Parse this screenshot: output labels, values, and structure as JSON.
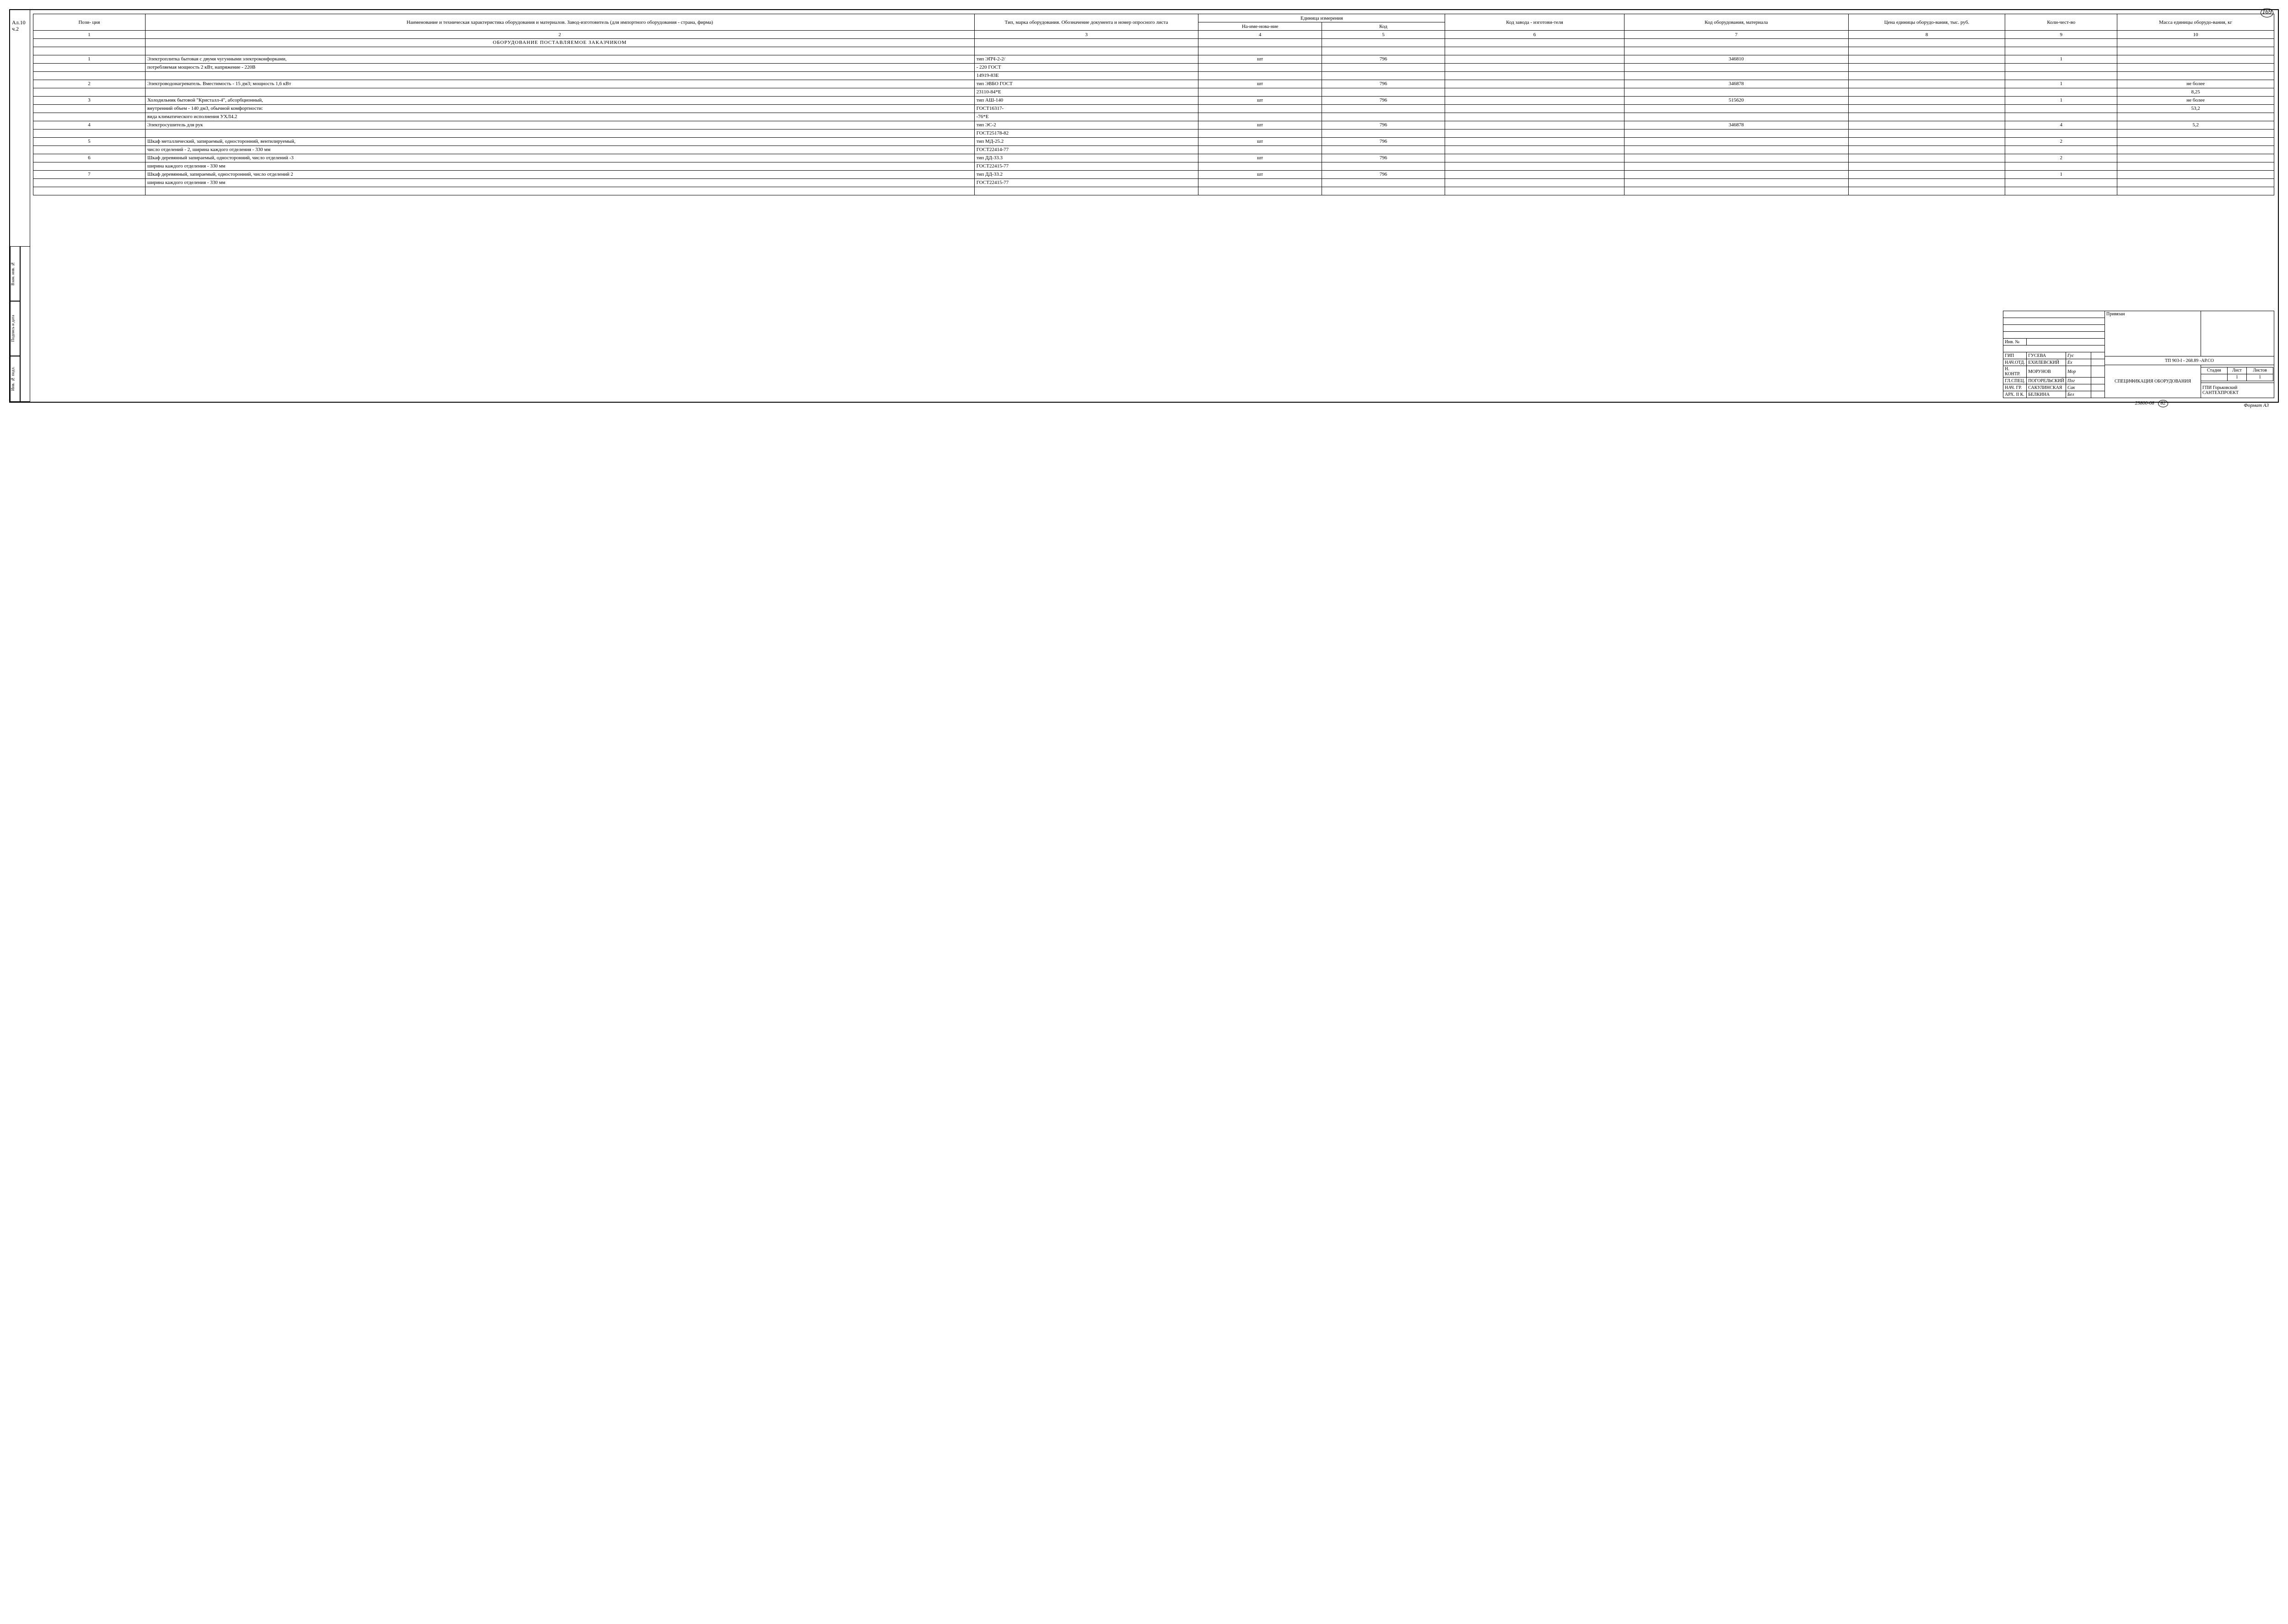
{
  "page_number_top": "169",
  "album_label_1": "Ал.10",
  "album_label_2": "ч.2",
  "headers": {
    "col1": "Пози-\nция",
    "col2": "Наименование и техническая характеристика оборудования и материалов.\nЗавод-изготовитель (для импортного оборудования - страна, фирма)",
    "col3": "Тип, марка оборудования. Обозначение документа и номер опросного листа",
    "col4_group": "Единица измерения",
    "col4": "На-име-нова-ние",
    "col5": "Код",
    "col6": "Код завода - изготови-теля",
    "col7": "Код оборудования, материала",
    "col8": "Цена единицы оборудо-вания, тыс. руб.",
    "col9": "Коли-чест-во",
    "col10": "Масса единицы оборудо-вания, кг"
  },
  "header_nums": [
    "1",
    "2",
    "3",
    "4",
    "5",
    "6",
    "7",
    "8",
    "9",
    "10"
  ],
  "section_title": "ОБОРУДОВАНИЕ ПОСТАВЛЯЕМОЕ ЗАКАЗЧИКОМ",
  "rows": [
    {
      "c1": "1",
      "c2": "Электроплитка бытовая с двумя чугунными электроконфорками,",
      "c3": "тип ЭПЧ-2-2/",
      "c4": "шт",
      "c5": "796",
      "c6": "",
      "c7": "346810",
      "c8": "",
      "c9": "1",
      "c10": ""
    },
    {
      "c1": "",
      "c2": "потребляемая мощность 2 кВт, напряжение - 220В",
      "c3": "- 220 ГОСТ",
      "c4": "",
      "c5": "",
      "c6": "",
      "c7": "",
      "c8": "",
      "c9": "",
      "c10": ""
    },
    {
      "c1": "",
      "c2": "",
      "c3": "14919-83Е",
      "c4": "",
      "c5": "",
      "c6": "",
      "c7": "",
      "c8": "",
      "c9": "",
      "c10": ""
    },
    {
      "c1": "2",
      "c2": "Электроводонагреватель. Вместимость - 15 дм3; мощность 1,6 кВт",
      "c3": "тип ЭВБО ГОСТ",
      "c4": "шт",
      "c5": "796",
      "c6": "",
      "c7": "346878",
      "c8": "",
      "c9": "1",
      "c10": "не более"
    },
    {
      "c1": "",
      "c2": "",
      "c3": "23110-84*Е",
      "c4": "",
      "c5": "",
      "c6": "",
      "c7": "",
      "c8": "",
      "c9": "",
      "c10": "8,25"
    },
    {
      "c1": "3",
      "c2": "Холодильник бытовой \"Кристалл-4\", абсорбционный,",
      "c3": "тип АШ-140",
      "c4": "шт",
      "c5": "796",
      "c6": "",
      "c7": "515620",
      "c8": "",
      "c9": "1",
      "c10": "не более"
    },
    {
      "c1": "",
      "c2": "внутренний объем - 140 дм3, обычной комфортности:",
      "c3": "ГОСТ16317-",
      "c4": "",
      "c5": "",
      "c6": "",
      "c7": "",
      "c8": "",
      "c9": "",
      "c10": "53,2"
    },
    {
      "c1": "",
      "c2": "вида климатического исполнения УХЛ4.2",
      "c3": "-76*Е",
      "c4": "",
      "c5": "",
      "c6": "",
      "c7": "",
      "c8": "",
      "c9": "",
      "c10": ""
    },
    {
      "c1": "4",
      "c2": "Электросушитель для рук",
      "c3": "тип ЭС-2",
      "c4": "шт",
      "c5": "796",
      "c6": "",
      "c7": "346878",
      "c8": "",
      "c9": "4",
      "c10": "5,2"
    },
    {
      "c1": "",
      "c2": "",
      "c3": "ГОСТ25178-82",
      "c4": "",
      "c5": "",
      "c6": "",
      "c7": "",
      "c8": "",
      "c9": "",
      "c10": ""
    },
    {
      "c1": "5",
      "c2": "Шкаф металлический, запираемый, односторонний, вентилируемый,",
      "c3": "тип МД-25.2",
      "c4": "шт",
      "c5": "796",
      "c6": "",
      "c7": "",
      "c8": "",
      "c9": "2",
      "c10": ""
    },
    {
      "c1": "",
      "c2": "число отделений - 2, ширина каждого отделения - 330 мм",
      "c3": "ГОСТ22414-77",
      "c4": "",
      "c5": "",
      "c6": "",
      "c7": "",
      "c8": "",
      "c9": "",
      "c10": ""
    },
    {
      "c1": "6",
      "c2": "Шкаф деревянный запираемый, односторонний, число отделений -3",
      "c3": "тип ДД-33.3",
      "c4": "шт",
      "c5": "796",
      "c6": "",
      "c7": "",
      "c8": "",
      "c9": "2",
      "c10": ""
    },
    {
      "c1": "",
      "c2": "ширина каждого отделения - 330 мм",
      "c3": "ГОСТ22415-77",
      "c4": "",
      "c5": "",
      "c6": "",
      "c7": "",
      "c8": "",
      "c9": "",
      "c10": ""
    },
    {
      "c1": "7",
      "c2": "Шкаф деревянный, запираемый, односторонний, число отделений 2",
      "c3": "тип ДД-33.2",
      "c4": "шт",
      "c5": "796",
      "c6": "",
      "c7": "",
      "c8": "",
      "c9": "1",
      "c10": ""
    },
    {
      "c1": "",
      "c2": "ширина каждого отделения - 330 мм",
      "c3": "ГОСТ22415-77",
      "c4": "",
      "c5": "",
      "c6": "",
      "c7": "",
      "c8": "",
      "c9": "",
      "c10": ""
    },
    {
      "c1": "",
      "c2": "",
      "c3": "",
      "c4": "",
      "c5": "",
      "c6": "",
      "c7": "",
      "c8": "",
      "c9": "",
      "c10": ""
    }
  ],
  "side": {
    "a": "Инв. № подл.",
    "b": "Подпись и дата",
    "c": "Взам. инв. №"
  },
  "title_block": {
    "inv_label": "Инв. №",
    "roles": [
      {
        "role": "ГИП",
        "name": "ГУСЕВА",
        "sig": "Гус"
      },
      {
        "role": "НАЧ.ОТД.",
        "name": "ЕХИЛЕВСКИЙ",
        "sig": "Ех"
      },
      {
        "role": "Н. КОНТР.",
        "name": "МОРУНОВ",
        "sig": "Мор"
      },
      {
        "role": "ГЛ.СПЕЦ.",
        "name": "ПОГОРЕЛЬСКИЙ",
        "sig": "Пог"
      },
      {
        "role": "НАЧ. ГР.",
        "name": "САКУЛИНСКАЯ",
        "sig": "Сак"
      },
      {
        "role": "АРХ. II К.",
        "name": "БЕЛКИНА",
        "sig": "Бел"
      }
    ],
    "bound_label": "Привязан",
    "project_code": "ТП 903-I - 268.89 -АР.СО",
    "doc_title": "СПЕЦИФИКАЦИЯ ОБОРУДОВАНИЯ",
    "stage_h": "Стадия",
    "sheet_h": "Лист",
    "sheets_h": "Листов",
    "stage": "",
    "sheet": "1",
    "sheets": "1",
    "org": "ГПИ Горьковский САНТЕХПРОЕКТ"
  },
  "footer": {
    "num": "23800-08",
    "circ": "82",
    "format": "Формат А3"
  }
}
